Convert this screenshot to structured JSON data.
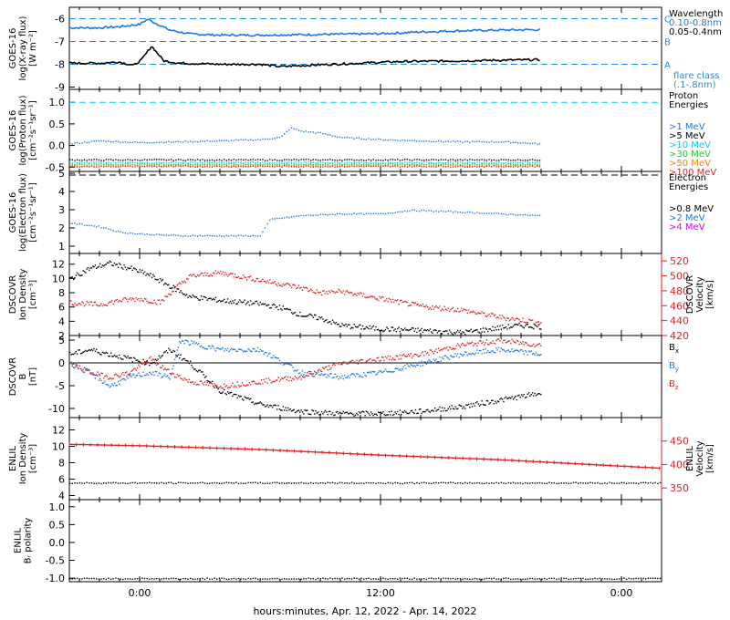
{
  "chart_data": {
    "type": "line",
    "xlabel": "hours:minutes, Apr. 12, 2022 - Apr. 14, 2022",
    "x_ticks": [
      "0:00",
      "12:00",
      "0:00"
    ],
    "x_range_hours": [
      -3.5,
      26.0
    ],
    "data_end_hour": 20.0,
    "panels": [
      {
        "id": "xray",
        "ylabel": [
          "GOES-16",
          "log(X-ray flux)",
          "[W m⁻²]"
        ],
        "ylim": [
          -9.1,
          -5.5
        ],
        "yticks": [
          -9,
          -8,
          -7,
          -6
        ],
        "ref_lines": [
          {
            "y": -6,
            "label": "C",
            "color": "#1e8ce0"
          },
          {
            "y": -7,
            "label": "B",
            "color": "#1e8ce0"
          },
          {
            "y": -8,
            "label": "A",
            "color": "#1e8ce0"
          }
        ],
        "legend_title": "Wavelength",
        "series": [
          {
            "name": "0.10-0.8nm",
            "color": "#1e78dc",
            "style": "line",
            "x": [
              -3.5,
              -2,
              -1,
              0,
              0.4,
              0.8,
              1.5,
              2.5,
              4,
              6,
              8,
              10,
              12,
              13,
              14,
              16,
              18,
              20
            ],
            "y": [
              -6.4,
              -6.4,
              -6.35,
              -6.25,
              -6.02,
              -6.2,
              -6.5,
              -6.67,
              -6.72,
              -6.72,
              -6.7,
              -6.68,
              -6.66,
              -6.62,
              -6.58,
              -6.53,
              -6.5,
              -6.48
            ]
          },
          {
            "name": "0.05-0.4nm",
            "color": "#000000",
            "style": "line",
            "x": [
              -3.5,
              -2,
              -1,
              -0.3,
              0.1,
              0.6,
              1.2,
              2,
              4,
              6,
              7,
              9,
              11,
              13,
              16,
              18,
              20
            ],
            "y": [
              -7.95,
              -7.95,
              -7.9,
              -8.05,
              -7.8,
              -7.2,
              -7.85,
              -7.95,
              -8.0,
              -8.0,
              -8.1,
              -8.02,
              -7.95,
              -7.88,
              -7.85,
              -7.82,
              -7.8
            ]
          }
        ],
        "note": [
          "flare class",
          "(.1-.8nm)"
        ]
      },
      {
        "id": "proton",
        "ylabel": [
          "GOES-16",
          "log(Proton flux)",
          "[cm⁻²s⁻¹sr⁻¹]"
        ],
        "ylim": [
          -0.6,
          1.3
        ],
        "yticks": [
          -0.5,
          0.0,
          0.5,
          1.0
        ],
        "ytick_labels": [
          "-0.5",
          "0.0",
          "0.5",
          "1.0"
        ],
        "ref_lines": [
          {
            "y": 1.0,
            "color": "#00ccee"
          }
        ],
        "legend_title": "Proton Energies",
        "series": [
          {
            "name": ">1 MeV",
            "color": "#1e78dc",
            "style": "dots",
            "x": [
              -3.5,
              -2,
              0,
              2,
              4,
              6,
              7,
              7.5,
              8,
              9,
              10,
              12,
              14,
              16,
              18,
              20
            ],
            "y": [
              0.05,
              0.12,
              0.08,
              0.1,
              0.12,
              0.15,
              0.2,
              0.42,
              0.35,
              0.3,
              0.2,
              0.15,
              0.12,
              0.1,
              0.1,
              0.05
            ]
          },
          {
            "name": ">5 MeV",
            "color": "#000000",
            "style": "dots",
            "x": [
              -3.5,
              20
            ],
            "y": [
              -0.32,
              -0.32
            ]
          },
          {
            "name": ">10 MeV",
            "color": "#00ccee",
            "style": "dots",
            "x": [
              -3.5,
              20
            ],
            "y": [
              -0.38,
              -0.38
            ]
          },
          {
            "name": ">30 MeV",
            "color": "#22cc22",
            "style": "dots",
            "x": [
              -3.5,
              20
            ],
            "y": [
              -0.42,
              -0.42
            ]
          },
          {
            "name": ">50 MeV",
            "color": "#ee8800",
            "style": "dots",
            "x": [
              -3.5,
              20
            ],
            "y": [
              -0.45,
              -0.45
            ]
          },
          {
            "name": ">100 MeV",
            "color": "#dd2222",
            "style": "dots",
            "x": [
              -3.5,
              20
            ],
            "y": [
              -0.47,
              -0.47
            ]
          }
        ]
      },
      {
        "id": "electron",
        "ylabel": [
          "GOES-16",
          "log(Electron flux)",
          "[cm⁻²s⁻¹sr⁻¹]"
        ],
        "ylim": [
          0.6,
          5.1
        ],
        "yticks": [
          1,
          2,
          3,
          4,
          5
        ],
        "ref_lines": [
          {
            "y": 4.9,
            "color": "#000000"
          }
        ],
        "legend_title": "Electron Energies",
        "series": [
          {
            "name": ">0.8 MeV",
            "color": "#000000",
            "style": "dots",
            "x": [],
            "y": []
          },
          {
            "name": ">2 MeV",
            "color": "#1e78dc",
            "style": "dots",
            "x": [
              -3.5,
              -2,
              -1,
              0,
              2,
              4,
              6,
              6.2,
              6.5,
              8,
              10,
              12,
              13.5,
              16,
              18,
              20
            ],
            "y": [
              2.3,
              2.1,
              1.8,
              1.7,
              1.6,
              1.6,
              1.6,
              2.0,
              2.5,
              2.7,
              2.8,
              2.8,
              3.0,
              2.9,
              2.8,
              2.7
            ]
          },
          {
            "name": ">4 MeV",
            "color": "#dd00dd",
            "style": "dots",
            "x": [],
            "y": []
          }
        ]
      },
      {
        "id": "dscovr-plasma",
        "ylabel": [
          "DSCOVR",
          "Ion Density",
          "[cm⁻³]"
        ],
        "ylim": [
          2,
          13.5
        ],
        "yticks": [
          2,
          4,
          6,
          8,
          10,
          12
        ],
        "ylabel_right": [
          "DSCOVR",
          "Velocity",
          "[km/s]"
        ],
        "ylim_right": [
          420,
          530
        ],
        "yticks_right": [
          420,
          440,
          460,
          480,
          500,
          520
        ],
        "right_color": "#dd2222",
        "series": [
          {
            "name": "Ion Density",
            "color": "#000000",
            "style": "dots",
            "axis": "left",
            "x": [
              -3.5,
              -2.5,
              -1.5,
              -0.5,
              0.5,
              1.5,
              2.5,
              4,
              6,
              7,
              8,
              9,
              10,
              12,
              14,
              16,
              17,
              18,
              19,
              20
            ],
            "y": [
              10,
              11.5,
              12.2,
              11.5,
              10.5,
              9,
              7.5,
              7,
              6.5,
              6,
              5,
              4.5,
              3.5,
              3,
              2.8,
              2.5,
              2.8,
              3.2,
              3.5,
              3.3
            ]
          },
          {
            "name": "Velocity",
            "color": "#dd2222",
            "style": "dots",
            "axis": "right",
            "x": [
              -3.5,
              -2,
              -1,
              0,
              1,
              2,
              2.5,
              4,
              6,
              8,
              9,
              10,
              12,
              14,
              16,
              18,
              20
            ],
            "y": [
              465,
              462,
              468,
              470,
              465,
              490,
              500,
              505,
              495,
              485,
              478,
              480,
              470,
              460,
              455,
              445,
              438
            ]
          }
        ]
      },
      {
        "id": "dscovr-mag",
        "ylabel": [
          "DSCOVR",
          "B",
          "[nT]"
        ],
        "ylim": [
          -12,
          6
        ],
        "yticks": [
          -10,
          -5,
          0,
          5
        ],
        "ref_lines": [
          {
            "y": 0,
            "color": "#000000",
            "solid": true
          }
        ],
        "series": [
          {
            "name": "Bx",
            "color": "#000000",
            "style": "dots",
            "x": [
              -3.5,
              -2.5,
              -1.5,
              -0.5,
              0.5,
              1.5,
              2.5,
              4,
              6,
              8,
              10,
              12,
              14,
              16,
              18,
              20
            ],
            "y": [
              2,
              3,
              2,
              1,
              0,
              3,
              0,
              -6,
              -9,
              -10.5,
              -11,
              -11,
              -10.5,
              -9.5,
              -8,
              -6.5
            ]
          },
          {
            "name": "By",
            "color": "#1e78dc",
            "style": "dots",
            "x": [
              -3.5,
              -2.5,
              -1.5,
              -0.5,
              0.5,
              1.5,
              2,
              3,
              4,
              6,
              8,
              10,
              12,
              14,
              16,
              18,
              20
            ],
            "y": [
              0,
              -2,
              -5,
              -3,
              -2,
              -3,
              5,
              4,
              3,
              3,
              -2,
              -3,
              -2,
              0,
              2,
              3,
              2
            ]
          },
          {
            "name": "Bz",
            "color": "#dd2222",
            "style": "dots",
            "x": [
              -3.5,
              -2.5,
              -1.5,
              -0.5,
              0.5,
              1.5,
              2.5,
              4,
              6,
              8,
              10,
              12,
              14,
              16,
              18,
              20
            ],
            "y": [
              0,
              -2,
              -3,
              -2,
              1,
              -2,
              -4,
              -5,
              -4,
              -3,
              0,
              1,
              2,
              4,
              5,
              4
            ]
          }
        ]
      },
      {
        "id": "enlil-plasma",
        "ylabel": [
          "ENLIL",
          "Ion Density",
          "[cm⁻³]"
        ],
        "ylim": [
          3.5,
          13.5
        ],
        "yticks": [
          4,
          6,
          8,
          10,
          12
        ],
        "ylabel_right": [
          "ENLIL",
          "Velocity",
          "[km/s]"
        ],
        "ylim_right": [
          325,
          500
        ],
        "yticks_right": [
          350,
          400,
          450
        ],
        "right_color": "#dd2222",
        "series": [
          {
            "name": "Velocity",
            "color": "#dd2222",
            "style": "line",
            "axis": "right",
            "x": [
              -3.5,
              0,
              6,
              12,
              18,
              26
            ],
            "y": [
              443,
              440,
              432,
              420,
              410,
              392
            ]
          },
          {
            "name": "Ion Density",
            "color": "#000000",
            "style": "dots",
            "axis": "left",
            "x": [
              -3.5,
              26
            ],
            "y": [
              5.6,
              5.6
            ]
          }
        ]
      },
      {
        "id": "enlil-polarity",
        "ylabel": [
          "ENLIL",
          "Bᵣ polarity"
        ],
        "ylim": [
          -1.1,
          1.2
        ],
        "yticks": [
          -1.0,
          -0.5,
          0.0,
          0.5,
          1.0
        ],
        "ytick_labels": [
          "-1.0",
          "-0.5",
          "0.0",
          "0.5",
          "1.0"
        ],
        "series": [
          {
            "name": "Br polarity",
            "color": "#000000",
            "style": "dots",
            "x": [
              -3.5,
              26
            ],
            "y": [
              -1.0,
              -1.0
            ]
          }
        ]
      }
    ]
  }
}
